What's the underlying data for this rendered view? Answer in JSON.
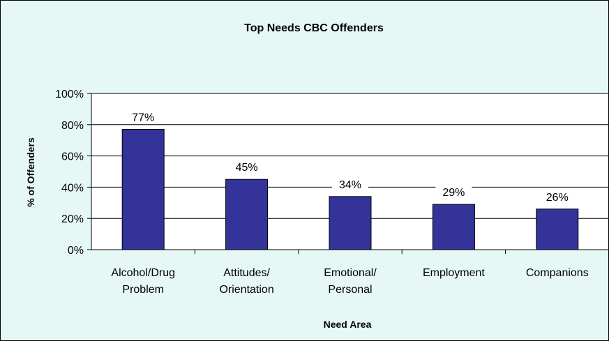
{
  "chart_data": {
    "type": "bar",
    "title": "Top Needs CBC Offenders",
    "xlabel": "Need Area",
    "ylabel": "% of Offenders",
    "categories": [
      [
        "Alcohol/Drug",
        "Problem"
      ],
      [
        "Attitudes/",
        "Orientation"
      ],
      [
        "Emotional/",
        "Personal"
      ],
      [
        "Employment"
      ],
      [
        "Companions"
      ]
    ],
    "values": [
      77,
      45,
      34,
      29,
      26
    ],
    "data_labels": [
      "77%",
      "45%",
      "34%",
      "29%",
      "26%"
    ],
    "ylim": [
      0,
      100
    ],
    "yticks": [
      0,
      20,
      40,
      60,
      80,
      100
    ],
    "ytick_labels": [
      "0%",
      "20%",
      "40%",
      "60%",
      "80%",
      "100%"
    ],
    "grid": true,
    "legend": "none",
    "colors": {
      "bar": "#333399",
      "background": "#e6f8f6",
      "plot_background": "#ffffff"
    }
  }
}
